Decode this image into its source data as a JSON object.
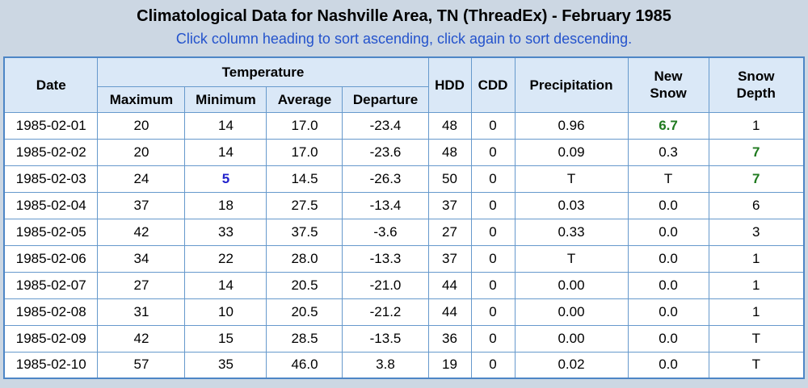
{
  "header": {
    "title": "Climatological Data for Nashville Area, TN (ThreadEx) - February 1985",
    "subtitle": "Click column heading to sort ascending, click again to sort descending."
  },
  "table": {
    "column_groups": {
      "temperature": "Temperature"
    },
    "columns": [
      {
        "key": "date",
        "label": "Date"
      },
      {
        "key": "maximum",
        "label": "Maximum"
      },
      {
        "key": "minimum",
        "label": "Minimum"
      },
      {
        "key": "average",
        "label": "Average"
      },
      {
        "key": "departure",
        "label": "Departure"
      },
      {
        "key": "hdd",
        "label": "HDD"
      },
      {
        "key": "cdd",
        "label": "CDD"
      },
      {
        "key": "precipitation",
        "label": "Precipitation"
      },
      {
        "key": "new-snow",
        "label": "New Snow"
      },
      {
        "key": "snow-depth",
        "label": "Snow Depth"
      }
    ],
    "rows": [
      {
        "cells": [
          "1985-02-01",
          "20",
          "14",
          "17.0",
          "-23.4",
          "48",
          "0",
          "0.96",
          "6.7",
          "1"
        ],
        "highlights": {
          "8": "green"
        }
      },
      {
        "cells": [
          "1985-02-02",
          "20",
          "14",
          "17.0",
          "-23.6",
          "48",
          "0",
          "0.09",
          "0.3",
          "7"
        ],
        "highlights": {
          "9": "green"
        }
      },
      {
        "cells": [
          "1985-02-03",
          "24",
          "5",
          "14.5",
          "-26.3",
          "50",
          "0",
          "T",
          "T",
          "7"
        ],
        "highlights": {
          "2": "blue",
          "9": "green"
        }
      },
      {
        "cells": [
          "1985-02-04",
          "37",
          "18",
          "27.5",
          "-13.4",
          "37",
          "0",
          "0.03",
          "0.0",
          "6"
        ],
        "highlights": {}
      },
      {
        "cells": [
          "1985-02-05",
          "42",
          "33",
          "37.5",
          "-3.6",
          "27",
          "0",
          "0.33",
          "0.0",
          "3"
        ],
        "highlights": {}
      },
      {
        "cells": [
          "1985-02-06",
          "34",
          "22",
          "28.0",
          "-13.3",
          "37",
          "0",
          "T",
          "0.0",
          "1"
        ],
        "highlights": {}
      },
      {
        "cells": [
          "1985-02-07",
          "27",
          "14",
          "20.5",
          "-21.0",
          "44",
          "0",
          "0.00",
          "0.0",
          "1"
        ],
        "highlights": {}
      },
      {
        "cells": [
          "1985-02-08",
          "31",
          "10",
          "20.5",
          "-21.2",
          "44",
          "0",
          "0.00",
          "0.0",
          "1"
        ],
        "highlights": {}
      },
      {
        "cells": [
          "1985-02-09",
          "42",
          "15",
          "28.5",
          "-13.5",
          "36",
          "0",
          "0.00",
          "0.0",
          "T"
        ],
        "highlights": {}
      },
      {
        "cells": [
          "1985-02-10",
          "57",
          "35",
          "46.0",
          "3.8",
          "19",
          "0",
          "0.02",
          "0.0",
          "T"
        ],
        "highlights": {}
      }
    ]
  },
  "colors": {
    "page_bg": "#ccd7e3",
    "header_bg": "#dae8f7",
    "border": "#6699cc",
    "outer_border": "#4d86c6",
    "subtitle_text": "#2453cc",
    "highlight_green": "#1f7a1f",
    "highlight_blue": "#2222cc"
  }
}
